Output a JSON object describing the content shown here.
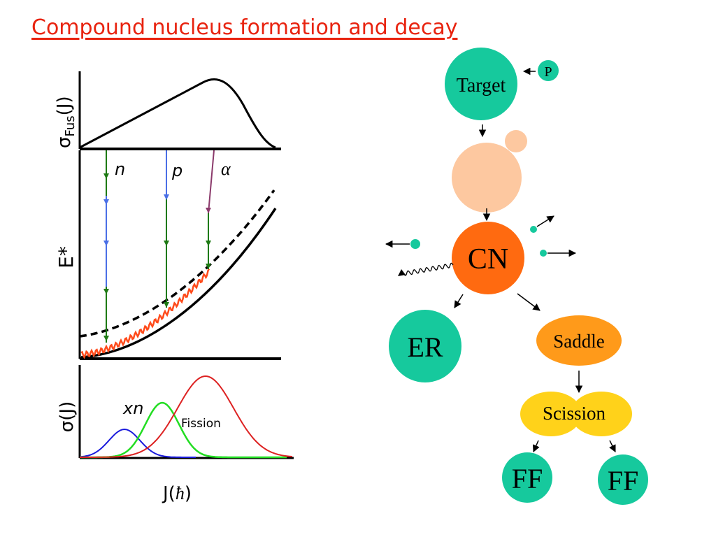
{
  "title": "Compound nucleus formation and decay",
  "plot": {
    "top_ylabel_main": "σ",
    "top_ylabel_sub": "Fus",
    "top_ylabel_arg": "(J)",
    "mid_ylabel": "E*",
    "bottom_ylabel": "σ(J)",
    "xlabel_main": "J(",
    "xlabel_hbar": "ħ",
    "xlabel_close": ")",
    "emission_labels": {
      "n": "n",
      "p": "p",
      "alpha": "α"
    },
    "xn_label": "xn",
    "fission_label": "Fission",
    "colors": {
      "xn1": "#1a1adc",
      "xn2": "#22dd22",
      "fission": "#dd2222",
      "n": "#1e7a14",
      "p": "#4a6fe6",
      "alpha": "#8b3a6b",
      "yrast_wavy": "#ff4a1a"
    }
  },
  "diagram": {
    "target": "Target",
    "projectile": "P",
    "cn": "CN",
    "er": "ER",
    "saddle": "Saddle",
    "scission": "Scission",
    "ff_left": "FF",
    "ff_right": "FF",
    "colors": {
      "teal": "#16c99d",
      "peach": "#fdc8a0",
      "cn": "#ff6a10",
      "saddle": "#ff9a1a",
      "scission": "#ffd21a"
    }
  }
}
